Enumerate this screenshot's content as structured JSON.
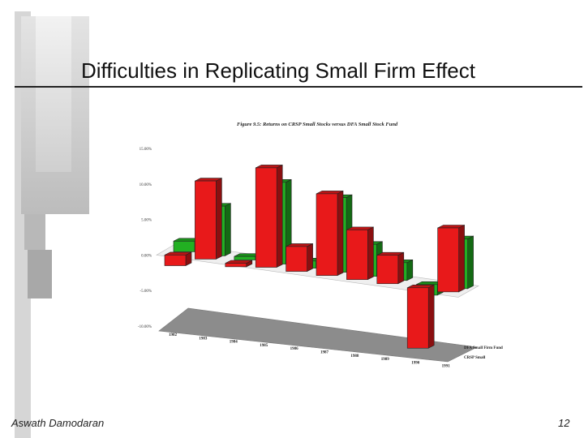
{
  "slide": {
    "title": "Difficulties in Replicating Small Firm Effect",
    "author": "Aswath Damodaran",
    "page_number": "12"
  },
  "colors": {
    "crsp_small": "#e8191a",
    "dfa_fund": "#22b022",
    "floor": "#8c8c8c",
    "decor_gray": "#c4c4c4"
  },
  "chart_data": {
    "type": "bar",
    "title": "Figure 9.5: Returns on CRSP Small Stocks versus DFA Small Stock Fund",
    "categories": [
      "1982",
      "1983",
      "1984",
      "1985",
      "1986",
      "1987",
      "1988",
      "1989",
      "1990",
      "1991"
    ],
    "y_ticks": [
      "15.00%",
      "10.00%",
      "5.00%",
      "0.00%",
      "-5.00%",
      "-10.00%"
    ],
    "ylim": [
      -10,
      15
    ],
    "series": [
      {
        "name": "DFA Small Firm Fund",
        "values": [
          1.5,
          7.0,
          0.5,
          11.5,
          1.0,
          10.5,
          4.5,
          2.5,
          -1.5,
          7.0
        ]
      },
      {
        "name": "CRSP Small",
        "values": [
          -1.5,
          11.0,
          -0.5,
          14.0,
          3.5,
          11.5,
          7.0,
          4.0,
          -8.5,
          9.0
        ]
      }
    ]
  }
}
